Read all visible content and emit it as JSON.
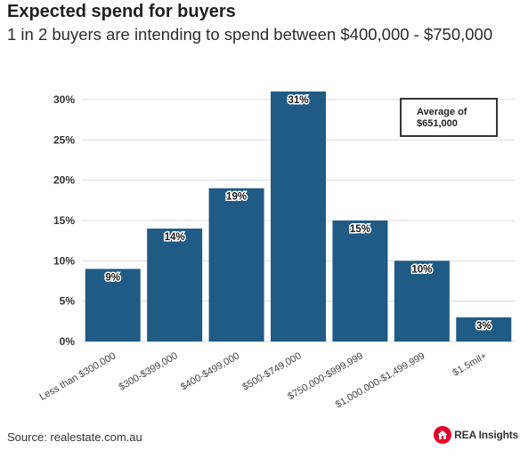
{
  "header": {
    "title": "Expected spend for buyers",
    "subtitle": "1 in 2 buyers are intending to spend between $400,000 - $750,000"
  },
  "footer": {
    "source": "Source: realestate.com.au",
    "logo_text": "REA Insights",
    "logo_icon": "rea-house-icon"
  },
  "annotation": {
    "line1": "Average of",
    "line2": "$651,000"
  },
  "colors": {
    "bar": "#1f5b85",
    "grid": "#d9d9d9",
    "brand_red": "#e4002b"
  },
  "chart_data": {
    "type": "bar",
    "title": "Expected spend for buyers",
    "subtitle": "1 in 2 buyers are intending to spend between $400,000 - $750,000",
    "categories": [
      "Less than $300,000",
      "$300-$399,000",
      "$400-$499,000",
      "$500-$749,000",
      "$750,000-$999,999",
      "$1,000,000-$1,499,999",
      "$1.5mil+"
    ],
    "values": [
      9,
      14,
      19,
      31,
      15,
      10,
      3
    ],
    "data_labels": [
      "9%",
      "14%",
      "19%",
      "31%",
      "15%",
      "10%",
      "3%"
    ],
    "y_ticks": [
      0,
      5,
      10,
      15,
      20,
      25,
      30
    ],
    "y_tick_labels": [
      "0%",
      "5%",
      "10%",
      "15%",
      "20%",
      "25%",
      "30%"
    ],
    "ylim": [
      0,
      32
    ],
    "xlabel": "",
    "ylabel": "",
    "grid": true,
    "legend": false
  }
}
